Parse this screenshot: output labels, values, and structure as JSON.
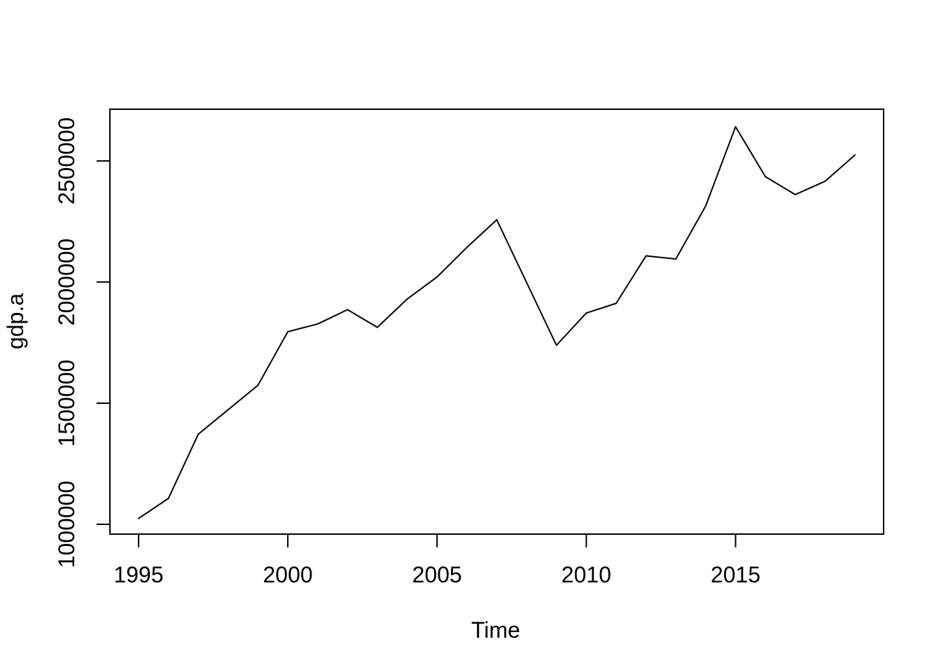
{
  "chart_data": {
    "type": "line",
    "title": "",
    "xlabel": "Time",
    "ylabel": "gdp.a",
    "x": [
      1995,
      1996,
      1997,
      1998,
      1999,
      2000,
      2001,
      2002,
      2003,
      2004,
      2005,
      2006,
      2007,
      2008,
      2009,
      2010,
      2011,
      2012,
      2013,
      2014,
      2015,
      2016,
      2017,
      2018,
      2019
    ],
    "series": [
      {
        "name": "gdp.a",
        "values": [
          1024000,
          1107000,
          1372000,
          1473000,
          1574000,
          1795000,
          1827000,
          1886000,
          1813000,
          1930000,
          2021000,
          2143000,
          2257000,
          1998000,
          1739000,
          1872000,
          1912000,
          2108000,
          2095000,
          2314000,
          2641000,
          2435000,
          2361000,
          2416000,
          2524000
        ]
      }
    ],
    "x_ticks": [
      1995,
      2000,
      2005,
      2010,
      2015
    ],
    "y_ticks": [
      1000000,
      1500000,
      2000000,
      2500000
    ],
    "xlim": [
      1994.04,
      2019.96
    ],
    "ylim": [
      959600,
      2713400
    ],
    "grid": "off",
    "legend": "none",
    "line_color": "#000000",
    "fg_color": "#000000",
    "background": "#ffffff"
  }
}
